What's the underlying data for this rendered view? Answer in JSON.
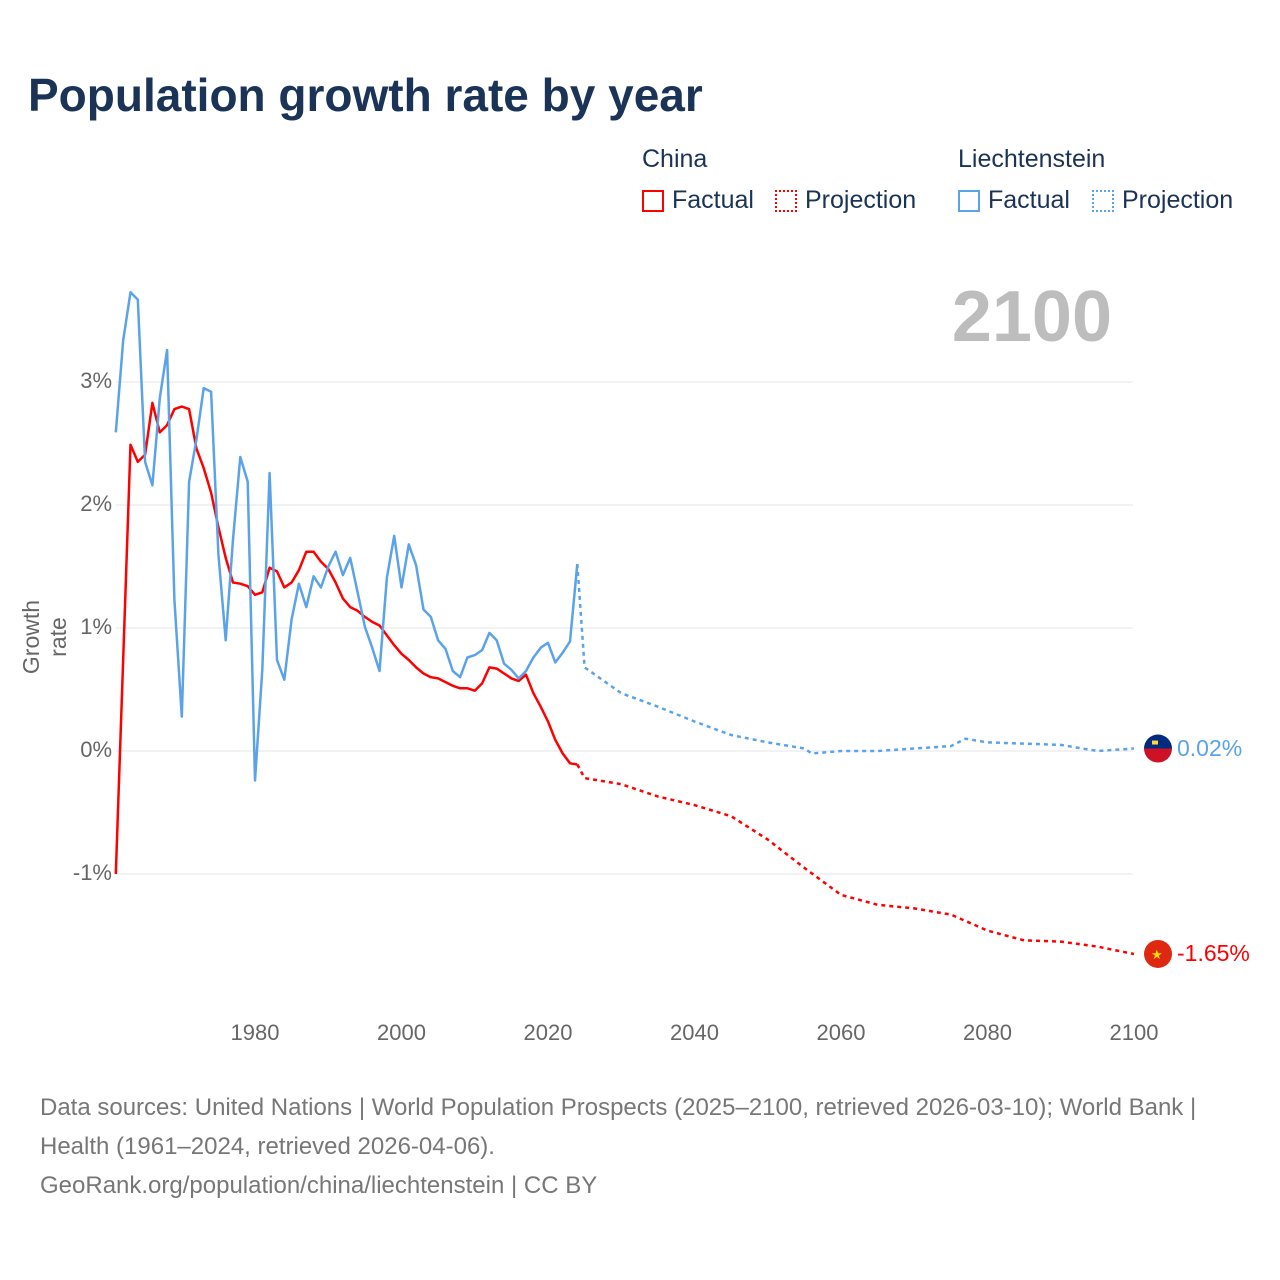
{
  "chart_data": {
    "type": "line",
    "title": "Population growth rate by year",
    "ylabel": "Growth rate",
    "xlabel": "",
    "current_year": "2100",
    "xlim": [
      1961,
      2100
    ],
    "ylim": [
      -1.8,
      3.8
    ],
    "y_ticks": [
      {
        "v": 3,
        "label": "3%"
      },
      {
        "v": 2,
        "label": "2%"
      },
      {
        "v": 1,
        "label": "1%"
      },
      {
        "v": 0,
        "label": "0%"
      },
      {
        "v": -1,
        "label": "-1%"
      }
    ],
    "x_ticks": [
      {
        "v": 1980,
        "label": "1980"
      },
      {
        "v": 2000,
        "label": "2000"
      },
      {
        "v": 2020,
        "label": "2020"
      },
      {
        "v": 2040,
        "label": "2040"
      },
      {
        "v": 2060,
        "label": "2060"
      },
      {
        "v": 2080,
        "label": "2080"
      },
      {
        "v": 2100,
        "label": "2100"
      }
    ],
    "grid": true,
    "legend": {
      "placement": "top-right",
      "groups": [
        {
          "name": "China",
          "factual": "Factual",
          "projection": "Projection",
          "color": "#ff0000"
        },
        {
          "name": "Liechtenstein",
          "factual": "Factual",
          "projection": "Projection",
          "color": "#5ba3e8"
        }
      ]
    },
    "series": [
      {
        "name": "China",
        "kind": "factual",
        "color": "#ff0000",
        "x": [
          1961,
          1962,
          1963,
          1964,
          1965,
          1966,
          1967,
          1968,
          1969,
          1970,
          1971,
          1972,
          1973,
          1974,
          1975,
          1976,
          1977,
          1978,
          1979,
          1980,
          1981,
          1982,
          1983,
          1984,
          1985,
          1986,
          1987,
          1988,
          1989,
          1990,
          1991,
          1992,
          1993,
          1994,
          1995,
          1996,
          1997,
          1998,
          1999,
          2000,
          2001,
          2002,
          2003,
          2004,
          2005,
          2006,
          2007,
          2008,
          2009,
          2010,
          2011,
          2012,
          2013,
          2014,
          2015,
          2016,
          2017,
          2018,
          2019,
          2020,
          2021,
          2022,
          2023,
          2024
        ],
        "y": [
          -1.0,
          0.75,
          2.49,
          2.35,
          2.41,
          2.83,
          2.59,
          2.65,
          2.78,
          2.8,
          2.78,
          2.46,
          2.3,
          2.1,
          1.82,
          1.57,
          1.37,
          1.36,
          1.34,
          1.27,
          1.29,
          1.49,
          1.46,
          1.33,
          1.37,
          1.47,
          1.62,
          1.62,
          1.54,
          1.48,
          1.37,
          1.24,
          1.17,
          1.14,
          1.09,
          1.05,
          1.02,
          0.94,
          0.86,
          0.79,
          0.74,
          0.68,
          0.63,
          0.6,
          0.59,
          0.56,
          0.53,
          0.51,
          0.51,
          0.49,
          0.55,
          0.68,
          0.67,
          0.63,
          0.59,
          0.57,
          0.62,
          0.47,
          0.36,
          0.24,
          0.09,
          -0.02,
          -0.1,
          -0.11
        ]
      },
      {
        "name": "China",
        "kind": "projection",
        "color": "#ff0000",
        "x": [
          2024,
          2025,
          2030,
          2035,
          2040,
          2045,
          2050,
          2055,
          2060,
          2065,
          2070,
          2075,
          2080,
          2085,
          2090,
          2095,
          2100
        ],
        "y": [
          -0.11,
          -0.22,
          -0.27,
          -0.37,
          -0.44,
          -0.53,
          -0.72,
          -0.95,
          -1.17,
          -1.25,
          -1.28,
          -1.33,
          -1.46,
          -1.54,
          -1.55,
          -1.59,
          -1.65
        ]
      },
      {
        "name": "Liechtenstein",
        "kind": "factual",
        "color": "#5ba3e8",
        "x": [
          1961,
          1962,
          1963,
          1964,
          1965,
          1966,
          1967,
          1968,
          1969,
          1970,
          1971,
          1972,
          1973,
          1974,
          1975,
          1976,
          1977,
          1978,
          1979,
          1980,
          1981,
          1982,
          1983,
          1984,
          1985,
          1986,
          1987,
          1988,
          1989,
          1990,
          1991,
          1992,
          1993,
          1994,
          1995,
          1996,
          1997,
          1998,
          1999,
          2000,
          2001,
          2002,
          2003,
          2004,
          2005,
          2006,
          2007,
          2008,
          2009,
          2010,
          2011,
          2012,
          2013,
          2014,
          2015,
          2016,
          2017,
          2018,
          2019,
          2020,
          2021,
          2022,
          2023,
          2024
        ],
        "y": [
          2.59,
          3.34,
          3.73,
          3.67,
          2.35,
          2.16,
          2.87,
          3.26,
          1.23,
          0.28,
          2.19,
          2.53,
          2.95,
          2.92,
          1.6,
          0.9,
          1.72,
          2.39,
          2.19,
          -0.24,
          0.66,
          2.26,
          0.74,
          0.58,
          1.07,
          1.36,
          1.17,
          1.42,
          1.33,
          1.5,
          1.62,
          1.43,
          1.57,
          1.29,
          1.01,
          0.84,
          0.65,
          1.41,
          1.75,
          1.33,
          1.68,
          1.51,
          1.15,
          1.09,
          0.9,
          0.83,
          0.65,
          0.6,
          0.76,
          0.78,
          0.82,
          0.96,
          0.9,
          0.71,
          0.66,
          0.59,
          0.65,
          0.76,
          0.84,
          0.88,
          0.72,
          0.8,
          0.89,
          1.52
        ]
      },
      {
        "name": "Liechtenstein",
        "kind": "projection",
        "color": "#5ba3e8",
        "x": [
          2024,
          2025,
          2030,
          2035,
          2040,
          2045,
          2050,
          2055,
          2056,
          2060,
          2065,
          2070,
          2075,
          2077,
          2080,
          2085,
          2090,
          2095,
          2100
        ],
        "y": [
          1.52,
          0.68,
          0.47,
          0.36,
          0.24,
          0.13,
          0.07,
          0.02,
          -0.02,
          0.0,
          0.0,
          0.02,
          0.04,
          0.1,
          0.07,
          0.06,
          0.05,
          0.0,
          0.02
        ]
      }
    ],
    "end_labels": [
      {
        "name": "Liechtenstein",
        "value": 0.02,
        "label": "0.02%",
        "color": "#5ba3e8"
      },
      {
        "name": "China",
        "value": -1.65,
        "label": "-1.65%",
        "color": "#ff0000"
      }
    ]
  },
  "footer": {
    "sources": "Data sources: United Nations | World Population Prospects (2025–2100, retrieved 2026-03-10); World Bank | Health (1961–2024, retrieved 2026-04-06).",
    "link": "GeoRank.org/population/china/liechtenstein | CC BY"
  }
}
